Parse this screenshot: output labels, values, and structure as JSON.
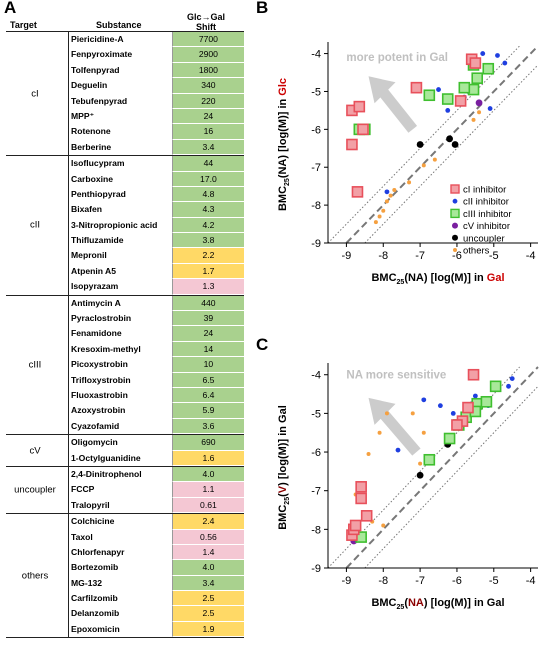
{
  "panel_labels": {
    "a": "A",
    "b": "B",
    "c": "C"
  },
  "table": {
    "header": {
      "target": "Target",
      "substance": "Substance",
      "shift_line1": "Glc→Gal",
      "shift_line2": "Shift"
    },
    "groups": [
      {
        "target": "cI",
        "rows": [
          {
            "substance": "Piericidine-A",
            "shift": "7700",
            "color": "green"
          },
          {
            "substance": "Fenpyroximate",
            "shift": "2900",
            "color": "green"
          },
          {
            "substance": "Tolfenpyrad",
            "shift": "1800",
            "color": "green"
          },
          {
            "substance": "Deguelin",
            "shift": "340",
            "color": "green"
          },
          {
            "substance": "Tebufenpyrad",
            "shift": "220",
            "color": "green"
          },
          {
            "substance": "MPP⁺",
            "shift": "24",
            "color": "green"
          },
          {
            "substance": "Rotenone",
            "shift": "16",
            "color": "green"
          },
          {
            "substance": "Berberine",
            "shift": "3.4",
            "color": "green"
          }
        ]
      },
      {
        "target": "cII",
        "rows": [
          {
            "substance": "Isoflucypram",
            "shift": "44",
            "color": "green"
          },
          {
            "substance": "Carboxine",
            "shift": "17.0",
            "color": "green"
          },
          {
            "substance": "Penthiopyrad",
            "shift": "4.8",
            "color": "green"
          },
          {
            "substance": "Bixafen",
            "shift": "4.3",
            "color": "green"
          },
          {
            "substance": "3-Nitropropionic acid",
            "shift": "4.2",
            "color": "green"
          },
          {
            "substance": "Thifluzamide",
            "shift": "3.8",
            "color": "green"
          },
          {
            "substance": "Mepronil",
            "shift": "2.2",
            "color": "yellow"
          },
          {
            "substance": "Atpenin A5",
            "shift": "1.7",
            "color": "yellow"
          },
          {
            "substance": "Isopyrazam",
            "shift": "1.3",
            "color": "pink"
          }
        ]
      },
      {
        "target": "cIII",
        "rows": [
          {
            "substance": "Antimycin A",
            "shift": "440",
            "color": "green"
          },
          {
            "substance": "Pyraclostrobin",
            "shift": "39",
            "color": "green"
          },
          {
            "substance": "Fenamidone",
            "shift": "24",
            "color": "green"
          },
          {
            "substance": "Kresoxim-methyl",
            "shift": "14",
            "color": "green"
          },
          {
            "substance": "Picoxystrobin",
            "shift": "10",
            "color": "green"
          },
          {
            "substance": "Trifloxystrobin",
            "shift": "6.5",
            "color": "green"
          },
          {
            "substance": "Fluoxastrobin",
            "shift": "6.4",
            "color": "green"
          },
          {
            "substance": "Azoxystrobin",
            "shift": "5.9",
            "color": "green"
          },
          {
            "substance": "Cyazofamid",
            "shift": "3.6",
            "color": "green"
          }
        ]
      },
      {
        "target": "cV",
        "rows": [
          {
            "substance": "Oligomycin",
            "shift": "690",
            "color": "green"
          },
          {
            "substance": "1-Octylguanidine",
            "shift": "1.6",
            "color": "yellow"
          }
        ]
      },
      {
        "target": "uncoupler",
        "rows": [
          {
            "substance": "2,4-Dinitrophenol",
            "shift": "4.0",
            "color": "green"
          },
          {
            "substance": "FCCP",
            "shift": "1.1",
            "color": "pink"
          },
          {
            "substance": "Tralopyril",
            "shift": "0.61",
            "color": "pink"
          }
        ]
      },
      {
        "target": "others",
        "rows": [
          {
            "substance": "Colchicine",
            "shift": "2.4",
            "color": "yellow"
          },
          {
            "substance": "Taxol",
            "shift": "0.56",
            "color": "pink"
          },
          {
            "substance": "Chlorfenapyr",
            "shift": "1.4",
            "color": "pink"
          },
          {
            "substance": "Bortezomib",
            "shift": "4.0",
            "color": "green"
          },
          {
            "substance": "MG-132",
            "shift": "3.4",
            "color": "green"
          },
          {
            "substance": "Carfilzomib",
            "shift": "2.5",
            "color": "yellow"
          },
          {
            "substance": "Delanzomib",
            "shift": "2.5",
            "color": "yellow"
          },
          {
            "substance": "Epoxomicin",
            "shift": "1.9",
            "color": "yellow"
          }
        ]
      }
    ]
  },
  "colors": {
    "green": "#a9d18e",
    "yellow": "#ffd966",
    "pink": "#f4c7d3",
    "cI": "#e8505b",
    "cI_fill": "#f2a0a6",
    "cII": "#1f3fe0",
    "cIII": "#3fbf2f",
    "cIII_fill": "#a8e89a",
    "cV": "#7a1fa0",
    "uncoupler": "#000000",
    "others": "#f5a040",
    "arrow": "#cccccc",
    "red_text": "#cc0000",
    "dark_red_text": "#8b0000"
  },
  "chart_data": [
    {
      "type": "scatter",
      "panel": "B",
      "xlabel": {
        "base": "BMC",
        "sub": "25",
        "rest": "(NA) [log(M)] in ",
        "highlight": "Gal"
      },
      "ylabel": {
        "base": "BMC",
        "sub": "25",
        "rest": "(NA) [log(M)] in ",
        "highlight": "Glc"
      },
      "xlim": [
        -9.5,
        -3.8
      ],
      "ylim": [
        -9,
        -3.8
      ],
      "xticks": [
        "-9",
        "-8",
        "-7",
        "-6",
        "-5",
        "-4"
      ],
      "yticks": [
        "-4",
        "-5",
        "-6",
        "-7",
        "-8",
        "-9"
      ],
      "annotation": "more potent in Gal",
      "legend_position": "bottom-right",
      "legend": [
        {
          "key": "cI",
          "label": "cI inhibitor",
          "marker": "square"
        },
        {
          "key": "cII",
          "label": "cII inhibitor",
          "marker": "dot"
        },
        {
          "key": "cIII",
          "label": "cIII inhibitor",
          "marker": "square"
        },
        {
          "key": "cV",
          "label": "cV inhibitor",
          "marker": "dot"
        },
        {
          "key": "uncoupler",
          "label": "uncoupler",
          "marker": "dot"
        },
        {
          "key": "others",
          "label": "others",
          "marker": "smalldot"
        }
      ],
      "series": [
        {
          "key": "cI",
          "points": [
            [
              -8.85,
              -6.4
            ],
            [
              -8.85,
              -5.5
            ],
            [
              -8.65,
              -5.4
            ],
            [
              -8.7,
              -7.65
            ],
            [
              -8.55,
              -6.0
            ],
            [
              -7.1,
              -4.9
            ],
            [
              -5.6,
              -4.15
            ],
            [
              -5.5,
              -4.25
            ],
            [
              -5.9,
              -5.25
            ]
          ]
        },
        {
          "key": "cII",
          "points": [
            [
              -6.25,
              -5.5
            ],
            [
              -5.3,
              -4.0
            ],
            [
              -4.9,
              -4.05
            ],
            [
              -4.7,
              -4.25
            ],
            [
              -5.1,
              -5.45
            ],
            [
              -6.5,
              -4.95
            ],
            [
              -7.9,
              -7.65
            ],
            [
              -5.8,
              -5.15
            ],
            [
              -5.7,
              -5.0
            ]
          ]
        },
        {
          "key": "cIII",
          "points": [
            [
              -8.65,
              -6.0
            ],
            [
              -8.5,
              -6.0
            ],
            [
              -6.75,
              -5.1
            ],
            [
              -6.25,
              -5.2
            ],
            [
              -5.55,
              -4.3
            ],
            [
              -5.45,
              -4.65
            ],
            [
              -5.55,
              -4.95
            ],
            [
              -5.15,
              -4.4
            ],
            [
              -5.8,
              -4.9
            ]
          ]
        },
        {
          "key": "cV",
          "points": [
            [
              -8.7,
              -6.0
            ],
            [
              -5.4,
              -5.3
            ]
          ]
        },
        {
          "key": "uncoupler",
          "points": [
            [
              -7.0,
              -6.4
            ],
            [
              -6.2,
              -6.25
            ],
            [
              -6.05,
              -6.4
            ]
          ]
        },
        {
          "key": "others",
          "points": [
            [
              -8.1,
              -8.3
            ],
            [
              -8.0,
              -8.15
            ],
            [
              -7.9,
              -7.9
            ],
            [
              -7.7,
              -7.6
            ],
            [
              -7.3,
              -7.4
            ],
            [
              -6.6,
              -6.8
            ],
            [
              -5.55,
              -5.75
            ],
            [
              -5.4,
              -5.55
            ],
            [
              -6.9,
              -6.95
            ],
            [
              -8.2,
              -8.45
            ],
            [
              -7.8,
              -7.75
            ]
          ]
        }
      ]
    },
    {
      "type": "scatter",
      "panel": "C",
      "xlabel": {
        "base": "BMC",
        "sub": "25",
        "open": "(",
        "highlight": "NA",
        "close": ") [log(M)] in Gal"
      },
      "ylabel": {
        "base": "BMC",
        "sub": "25",
        "open": "(",
        "highlight": "V",
        "close": ") [log(M)] in Gal"
      },
      "xlim": [
        -9.5,
        -3.8
      ],
      "ylim": [
        -9,
        -3.8
      ],
      "xticks": [
        "-9",
        "-8",
        "-7",
        "-6",
        "-5",
        "-4"
      ],
      "yticks": [
        "-4",
        "-5",
        "-6",
        "-7",
        "-8",
        "-9"
      ],
      "annotation": "NA more sensitive",
      "series": [
        {
          "key": "cI",
          "points": [
            [
              -8.85,
              -8.15
            ],
            [
              -8.8,
              -8.0
            ],
            [
              -8.75,
              -7.9
            ],
            [
              -8.6,
              -7.2
            ],
            [
              -8.45,
              -7.65
            ],
            [
              -8.6,
              -6.9
            ],
            [
              -5.55,
              -4.0
            ],
            [
              -5.85,
              -5.2
            ],
            [
              -6.0,
              -5.3
            ],
            [
              -5.7,
              -4.85
            ]
          ]
        },
        {
          "key": "cII",
          "points": [
            [
              -4.5,
              -4.1
            ],
            [
              -4.6,
              -4.3
            ],
            [
              -5.3,
              -4.65
            ],
            [
              -5.5,
              -4.55
            ],
            [
              -5.15,
              -4.8
            ],
            [
              -6.45,
              -4.8
            ],
            [
              -6.9,
              -4.65
            ],
            [
              -7.6,
              -5.95
            ],
            [
              -6.1,
              -5.0
            ],
            [
              -5.6,
              -4.75
            ]
          ]
        },
        {
          "key": "cIII",
          "points": [
            [
              -8.6,
              -8.2
            ],
            [
              -6.75,
              -6.2
            ],
            [
              -6.2,
              -5.65
            ],
            [
              -5.95,
              -5.3
            ],
            [
              -5.75,
              -5.1
            ],
            [
              -5.45,
              -4.75
            ],
            [
              -5.5,
              -4.95
            ],
            [
              -4.95,
              -4.3
            ],
            [
              -5.2,
              -4.7
            ]
          ]
        },
        {
          "key": "cV",
          "points": [
            [
              -8.8,
              -8.3
            ],
            [
              -5.4,
              -4.85
            ]
          ]
        },
        {
          "key": "uncoupler",
          "points": [
            [
              -7.0,
              -6.6
            ],
            [
              -6.25,
              -5.8
            ],
            [
              -6.2,
              -5.7
            ]
          ]
        },
        {
          "key": "others",
          "points": [
            [
              -8.75,
              -7.1
            ],
            [
              -8.6,
              -6.8
            ],
            [
              -8.4,
              -6.05
            ],
            [
              -8.55,
              -7.55
            ],
            [
              -8.1,
              -5.5
            ],
            [
              -7.9,
              -5.0
            ],
            [
              -7.2,
              -5.0
            ],
            [
              -6.9,
              -5.5
            ],
            [
              -7.0,
              -6.3
            ],
            [
              -8.3,
              -7.8
            ],
            [
              -8.0,
              -7.9
            ]
          ]
        }
      ]
    }
  ]
}
